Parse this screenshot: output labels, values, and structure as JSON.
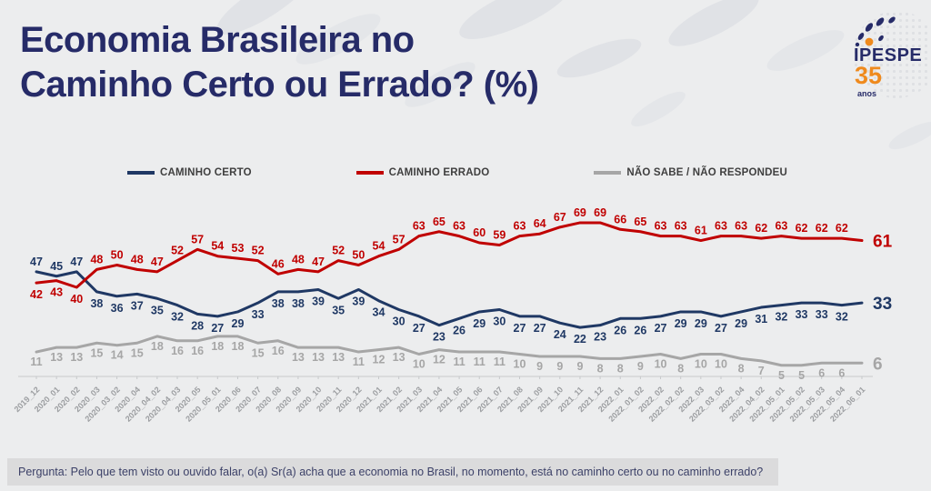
{
  "title": {
    "line1": "Economia Brasileira no",
    "line2": "Caminho Certo ou Errado? (%)"
  },
  "logo": {
    "brand": "IPESPE",
    "years": "35",
    "years_label": "anos"
  },
  "chart_data": {
    "type": "line",
    "title": "Economia Brasileira no Caminho Certo ou Errado? (%)",
    "x": [
      "2019_12",
      "2020_01",
      "2020_02",
      "2020_03",
      "2020_03_02",
      "2020_04",
      "2020_04_02",
      "2020_04_03",
      "2020_05",
      "2020_05_01",
      "2020_06",
      "2020_07",
      "2020_08",
      "2020_09",
      "2020_10",
      "2020_11",
      "2020_12",
      "2021_01",
      "2021_02",
      "2021_03",
      "2021_04",
      "2021_05",
      "2021_06",
      "2021_07",
      "2021_08",
      "2021_09",
      "2021_10",
      "2021_11",
      "2021_12",
      "2022_01",
      "2022_01_02",
      "2022_02",
      "2022_02_02",
      "2022_03",
      "2022_03_02",
      "2022_04",
      "2022_04_02",
      "2022_05_01",
      "2022_05_02",
      "2022_05_03",
      "2022_05_04",
      "2022_06_01"
    ],
    "series": [
      {
        "name": "CAMINHO CERTO",
        "color": "#1f3864",
        "values": [
          47,
          45,
          47,
          38,
          36,
          37,
          35,
          32,
          28,
          27,
          29,
          33,
          38,
          38,
          39,
          35,
          39,
          34,
          30,
          27,
          23,
          26,
          29,
          30,
          27,
          27,
          24,
          22,
          23,
          26,
          26,
          27,
          29,
          29,
          27,
          29,
          31,
          32,
          33,
          33,
          32,
          33
        ]
      },
      {
        "name": "CAMINHO ERRADO",
        "color": "#c00000",
        "values": [
          42,
          43,
          40,
          48,
          50,
          48,
          47,
          52,
          57,
          54,
          53,
          52,
          46,
          48,
          47,
          52,
          50,
          54,
          57,
          63,
          65,
          63,
          60,
          59,
          63,
          64,
          67,
          69,
          69,
          66,
          65,
          63,
          63,
          61,
          63,
          63,
          62,
          63,
          62,
          62,
          62,
          61
        ]
      },
      {
        "name": "NÃO SABE / NÃO RESPONDEU",
        "color": "#a6a6a6",
        "values": [
          11,
          13,
          13,
          15,
          14,
          15,
          18,
          16,
          16,
          18,
          18,
          15,
          16,
          13,
          13,
          13,
          11,
          12,
          13,
          10,
          12,
          11,
          11,
          11,
          10,
          9,
          9,
          9,
          8,
          8,
          9,
          10,
          8,
          10,
          10,
          8,
          7,
          5,
          5,
          6,
          6,
          6
        ]
      }
    ],
    "ylim": [
      0,
      80
    ],
    "grid": false,
    "data_labels": true,
    "legend_position": "top",
    "last_point_emphasis": true
  },
  "footer": {
    "question": "Pergunta: Pelo que tem visto ou ouvido falar, o(a) Sr(a) acha que a economia no Brasil, no momento, está no caminho certo ou no caminho errado?"
  },
  "colors": {
    "background": "#ecedee",
    "title": "#262b68",
    "axis_label": "#9c9ea1",
    "axis_line": "#c7c9cb",
    "footer_bg": "#dbdbdc",
    "footer_text": "#3c4168",
    "logo_orange": "#ef8a1d",
    "logo_navy": "#262b68"
  }
}
